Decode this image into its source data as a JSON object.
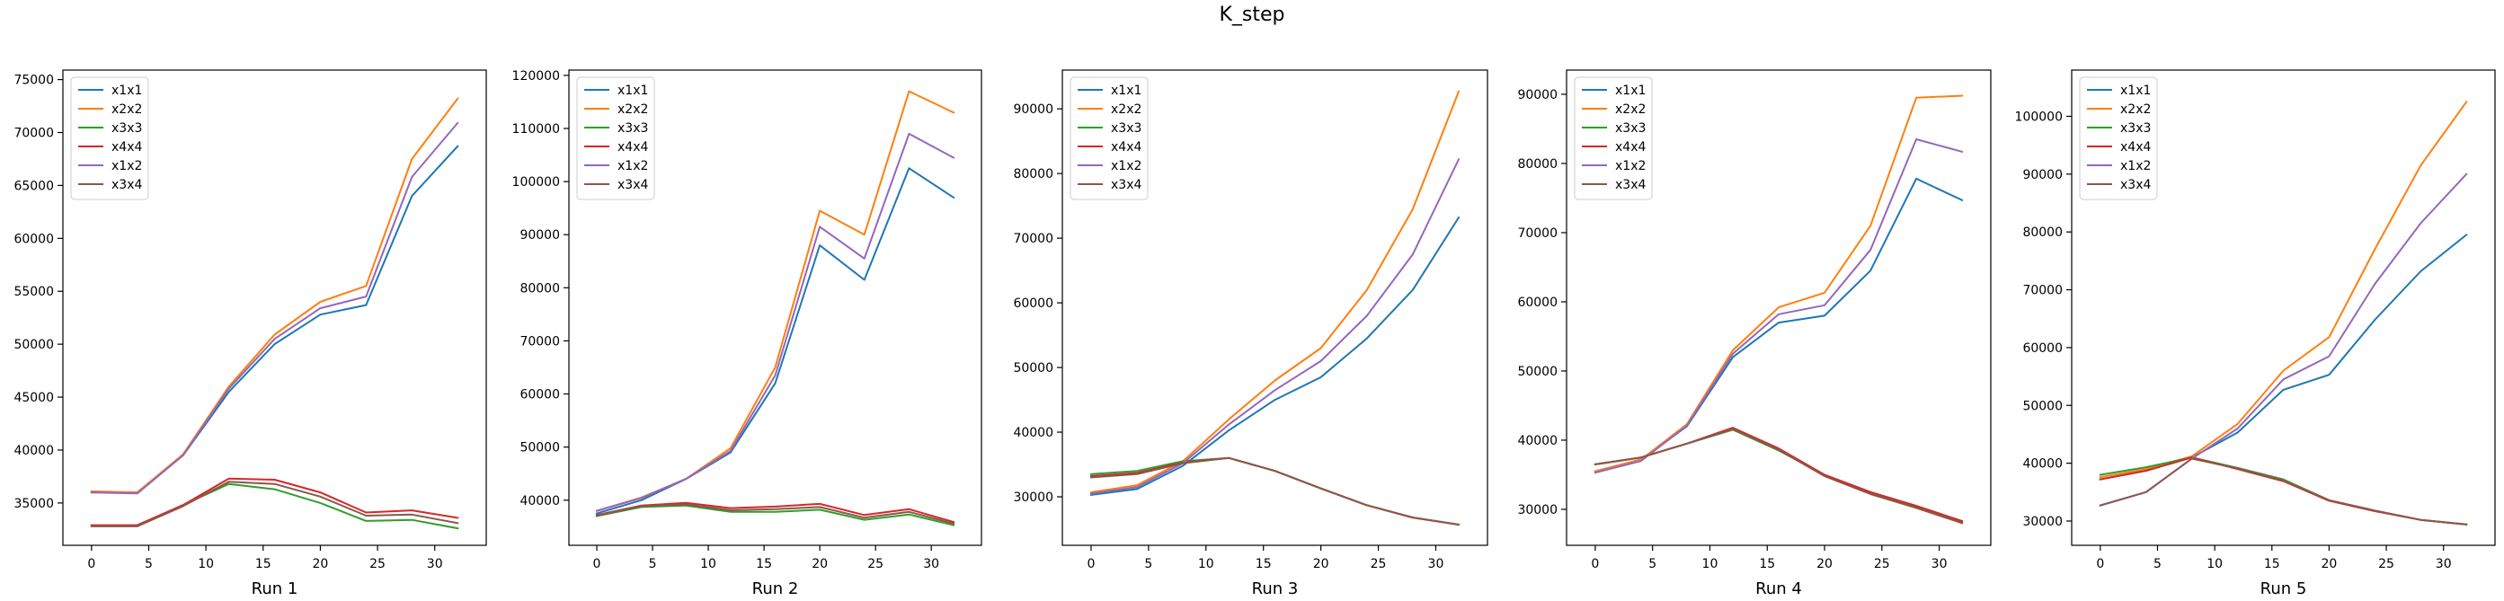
{
  "figure": {
    "title": "K_step"
  },
  "chart_data": [
    {
      "type": "line",
      "title": "",
      "xlabel": "Run 1",
      "ylabel": "",
      "x": [
        0,
        4,
        8,
        12,
        16,
        20,
        24,
        28,
        32
      ],
      "xlim": [
        -2.5,
        34.5
      ],
      "ylim": [
        31000,
        75900
      ],
      "xticks": [
        "0",
        "5",
        "10",
        "15",
        "20",
        "25",
        "30"
      ],
      "yticks": [
        "35000",
        "40000",
        "45000",
        "50000",
        "55000",
        "60000",
        "65000",
        "70000",
        "75000"
      ],
      "legend": "upper-left",
      "grid": false,
      "series": [
        {
          "name": "x1x1",
          "color": "#1f77b4",
          "values": [
            36000,
            36000,
            39500,
            45500,
            50000,
            52800,
            53700,
            64000,
            68700
          ]
        },
        {
          "name": "x2x2",
          "color": "#ff7f0e",
          "values": [
            36100,
            36000,
            39600,
            46000,
            50900,
            54000,
            55500,
            67500,
            73200
          ]
        },
        {
          "name": "x3x3",
          "color": "#2ca02c",
          "values": [
            32800,
            32800,
            34800,
            36800,
            36300,
            35000,
            33300,
            33400,
            32600
          ]
        },
        {
          "name": "x4x4",
          "color": "#d62728",
          "values": [
            32900,
            32900,
            34800,
            37300,
            37200,
            36000,
            34100,
            34300,
            33600
          ]
        },
        {
          "name": "x1x2",
          "color": "#9467bd",
          "values": [
            36000,
            35900,
            39500,
            45800,
            50500,
            53400,
            54500,
            65800,
            70900
          ]
        },
        {
          "name": "x3x4",
          "color": "#8c564b",
          "values": [
            32800,
            32800,
            34700,
            37000,
            36800,
            35600,
            33800,
            33900,
            33100
          ]
        }
      ]
    },
    {
      "type": "line",
      "title": "",
      "xlabel": "Run 2",
      "ylabel": "",
      "x": [
        0,
        4,
        8,
        12,
        16,
        20,
        24,
        28,
        32
      ],
      "xlim": [
        -2.5,
        34.5
      ],
      "ylim": [
        31500,
        121000
      ],
      "xticks": [
        "0",
        "5",
        "10",
        "15",
        "20",
        "25",
        "30"
      ],
      "yticks": [
        "40000",
        "50000",
        "60000",
        "70000",
        "80000",
        "90000",
        "100000",
        "110000",
        "120000"
      ],
      "legend": "upper-left",
      "grid": false,
      "series": [
        {
          "name": "x1x1",
          "color": "#1f77b4",
          "values": [
            37500,
            40000,
            44000,
            49000,
            62000,
            88000,
            81500,
            102500,
            97000
          ]
        },
        {
          "name": "x2x2",
          "color": "#ff7f0e",
          "values": [
            38000,
            40500,
            44000,
            49800,
            65000,
            94500,
            90000,
            117000,
            113000
          ]
        },
        {
          "name": "x3x3",
          "color": "#2ca02c",
          "values": [
            37000,
            38700,
            39000,
            37800,
            37800,
            38200,
            36300,
            37300,
            35300
          ]
        },
        {
          "name": "x4x4",
          "color": "#d62728",
          "values": [
            37200,
            39000,
            39500,
            38500,
            38800,
            39300,
            37200,
            38300,
            35900
          ]
        },
        {
          "name": "x1x2",
          "color": "#9467bd",
          "values": [
            38000,
            40400,
            44000,
            49300,
            63500,
            91500,
            85500,
            109000,
            104500
          ]
        },
        {
          "name": "x3x4",
          "color": "#8c564b",
          "values": [
            37100,
            38900,
            39200,
            38100,
            38300,
            38700,
            36700,
            37800,
            35600
          ]
        }
      ]
    },
    {
      "type": "line",
      "title": "",
      "xlabel": "Run 3",
      "ylabel": "",
      "x": [
        0,
        4,
        8,
        12,
        16,
        20,
        24,
        28,
        32
      ],
      "xlim": [
        -2.5,
        34.5
      ],
      "ylim": [
        22500,
        96000
      ],
      "xticks": [
        "0",
        "5",
        "10",
        "15",
        "20",
        "25",
        "30"
      ],
      "yticks": [
        "30000",
        "40000",
        "50000",
        "60000",
        "70000",
        "80000",
        "90000"
      ],
      "legend": "upper-left",
      "grid": false,
      "series": [
        {
          "name": "x1x1",
          "color": "#1f77b4",
          "values": [
            30300,
            31200,
            34800,
            40300,
            45000,
            48500,
            54500,
            62000,
            73200
          ]
        },
        {
          "name": "x2x2",
          "color": "#ff7f0e",
          "values": [
            30700,
            31800,
            35500,
            42000,
            48000,
            53000,
            62000,
            74500,
            92700
          ]
        },
        {
          "name": "x3x3",
          "color": "#2ca02c",
          "values": [
            33500,
            34000,
            35500,
            36000,
            34000,
            31300,
            28700,
            26800,
            25700
          ]
        },
        {
          "name": "x4x4",
          "color": "#d62728",
          "values": [
            33200,
            33700,
            35300,
            36000,
            34000,
            31300,
            28700,
            26800,
            25700
          ]
        },
        {
          "name": "x1x2",
          "color": "#9467bd",
          "values": [
            30500,
            31500,
            35200,
            41200,
            46500,
            51000,
            58000,
            67500,
            82200
          ]
        },
        {
          "name": "x3x4",
          "color": "#8c564b",
          "values": [
            33000,
            33500,
            35200,
            36000,
            34000,
            31300,
            28700,
            26800,
            25700
          ]
        }
      ]
    },
    {
      "type": "line",
      "title": "",
      "xlabel": "Run 4",
      "ylabel": "",
      "x": [
        0,
        4,
        8,
        12,
        16,
        20,
        24,
        28,
        32
      ],
      "xlim": [
        -2.5,
        34.5
      ],
      "ylim": [
        24800,
        93500
      ],
      "xticks": [
        "0",
        "5",
        "10",
        "15",
        "20",
        "25",
        "30"
      ],
      "yticks": [
        "30000",
        "40000",
        "50000",
        "60000",
        "70000",
        "80000",
        "90000"
      ],
      "legend": "upper-left",
      "grid": false,
      "series": [
        {
          "name": "x1x1",
          "color": "#1f77b4",
          "values": [
            35500,
            37200,
            42000,
            52000,
            57000,
            58000,
            64500,
            77800,
            74700
          ]
        },
        {
          "name": "x2x2",
          "color": "#ff7f0e",
          "values": [
            35500,
            37200,
            42300,
            53000,
            59200,
            61300,
            71000,
            89500,
            89800
          ]
        },
        {
          "name": "x3x3",
          "color": "#2ca02c",
          "values": [
            36500,
            37500,
            39500,
            41500,
            38500,
            35000,
            32300,
            30300,
            28200
          ]
        },
        {
          "name": "x4x4",
          "color": "#d62728",
          "values": [
            36500,
            37500,
            39500,
            41800,
            38800,
            35000,
            32500,
            30500,
            28300
          ]
        },
        {
          "name": "x1x2",
          "color": "#9467bd",
          "values": [
            35300,
            37000,
            42100,
            52500,
            58200,
            59500,
            67500,
            83500,
            81700
          ]
        },
        {
          "name": "x3x4",
          "color": "#8c564b",
          "values": [
            36500,
            37500,
            39500,
            41600,
            38600,
            34800,
            32200,
            30200,
            28000
          ]
        }
      ]
    },
    {
      "type": "line",
      "title": "",
      "xlabel": "Run 5",
      "ylabel": "",
      "x": [
        0,
        4,
        8,
        12,
        16,
        20,
        24,
        28,
        32
      ],
      "xlim": [
        -2.5,
        34.5
      ],
      "ylim": [
        25800,
        108000
      ],
      "xticks": [
        "0",
        "5",
        "10",
        "15",
        "20",
        "25",
        "30"
      ],
      "yticks": [
        "30000",
        "40000",
        "50000",
        "60000",
        "70000",
        "80000",
        "90000",
        "100000"
      ],
      "legend": "upper-left",
      "grid": false,
      "series": [
        {
          "name": "x1x1",
          "color": "#1f77b4",
          "values": [
            37200,
            38700,
            41000,
            45300,
            52700,
            55300,
            64800,
            73200,
            79500
          ]
        },
        {
          "name": "x2x2",
          "color": "#ff7f0e",
          "values": [
            37600,
            39000,
            41200,
            46800,
            56000,
            61800,
            77000,
            91500,
            102500
          ]
        },
        {
          "name": "x3x3",
          "color": "#2ca02c",
          "values": [
            38000,
            39300,
            41000,
            39200,
            37200,
            33600,
            31800,
            30200,
            29400
          ]
        },
        {
          "name": "x4x4",
          "color": "#d62728",
          "values": [
            37200,
            38700,
            41000,
            39000,
            36900,
            33500,
            31700,
            30200,
            29400
          ]
        },
        {
          "name": "x1x2",
          "color": "#9467bd",
          "values": [
            32700,
            35000,
            40800,
            46000,
            54500,
            58500,
            71000,
            81500,
            90000
          ]
        },
        {
          "name": "x3x4",
          "color": "#8c564b",
          "values": [
            32700,
            35000,
            40800,
            39100,
            37000,
            33600,
            31800,
            30200,
            29400
          ]
        }
      ]
    }
  ]
}
